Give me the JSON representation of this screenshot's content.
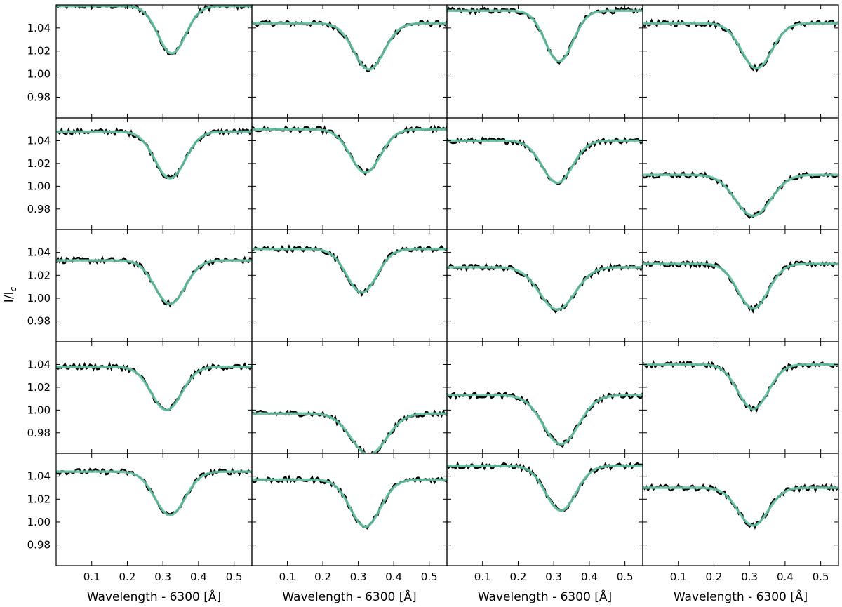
{
  "chart_data": {
    "type": "line",
    "layout": {
      "rows": 5,
      "cols": 4
    },
    "xlabel": "Wavelength - 6300 [Å]",
    "ylabel": "I/I",
    "ylabel_subscript": "c",
    "xlim": [
      0.0,
      0.55
    ],
    "ylim": [
      0.962,
      1.06
    ],
    "xticks": [
      0.1,
      0.2,
      0.3,
      0.4,
      0.5
    ],
    "xtick_labels": [
      "0.1",
      "0.2",
      "0.3",
      "0.4",
      "0.5"
    ],
    "yticks": [
      0.98,
      1.0,
      1.02,
      1.04
    ],
    "ytick_labels": [
      "0.98",
      "1.00",
      "1.02",
      "1.04"
    ],
    "grid": false,
    "legend": "none",
    "colors": {
      "observed": "#000000",
      "fit": "#66c2a5",
      "axes": "#000000"
    },
    "line_profile_params": [
      {
        "continuum": 1.059,
        "center": 0.325,
        "core": 1.018,
        "width": 0.055
      },
      {
        "continuum": 1.044,
        "center": 0.33,
        "core": 1.004,
        "width": 0.06
      },
      {
        "continuum": 1.055,
        "center": 0.315,
        "core": 1.011,
        "width": 0.055
      },
      {
        "continuum": 1.044,
        "center": 0.32,
        "core": 1.005,
        "width": 0.06
      },
      {
        "continuum": 1.048,
        "center": 0.32,
        "core": 1.007,
        "width": 0.06
      },
      {
        "continuum": 1.05,
        "center": 0.32,
        "core": 1.012,
        "width": 0.06
      },
      {
        "continuum": 1.04,
        "center": 0.31,
        "core": 1.003,
        "width": 0.06
      },
      {
        "continuum": 1.01,
        "center": 0.31,
        "core": 0.974,
        "width": 0.07
      },
      {
        "continuum": 1.033,
        "center": 0.32,
        "core": 0.995,
        "width": 0.06
      },
      {
        "continuum": 1.043,
        "center": 0.31,
        "core": 1.005,
        "width": 0.06
      },
      {
        "continuum": 1.027,
        "center": 0.31,
        "core": 0.99,
        "width": 0.07
      },
      {
        "continuum": 1.03,
        "center": 0.31,
        "core": 0.991,
        "width": 0.06
      },
      {
        "continuum": 1.038,
        "center": 0.31,
        "core": 1.0,
        "width": 0.06
      },
      {
        "continuum": 0.997,
        "center": 0.33,
        "core": 0.961,
        "width": 0.07
      },
      {
        "continuum": 1.013,
        "center": 0.32,
        "core": 0.97,
        "width": 0.07
      },
      {
        "continuum": 1.04,
        "center": 0.31,
        "core": 1.001,
        "width": 0.06
      },
      {
        "continuum": 1.044,
        "center": 0.32,
        "core": 1.006,
        "width": 0.06
      },
      {
        "continuum": 1.037,
        "center": 0.32,
        "core": 0.996,
        "width": 0.06
      },
      {
        "continuum": 1.049,
        "center": 0.32,
        "core": 1.01,
        "width": 0.06
      },
      {
        "continuum": 1.03,
        "center": 0.31,
        "core": 0.997,
        "width": 0.06
      }
    ]
  }
}
